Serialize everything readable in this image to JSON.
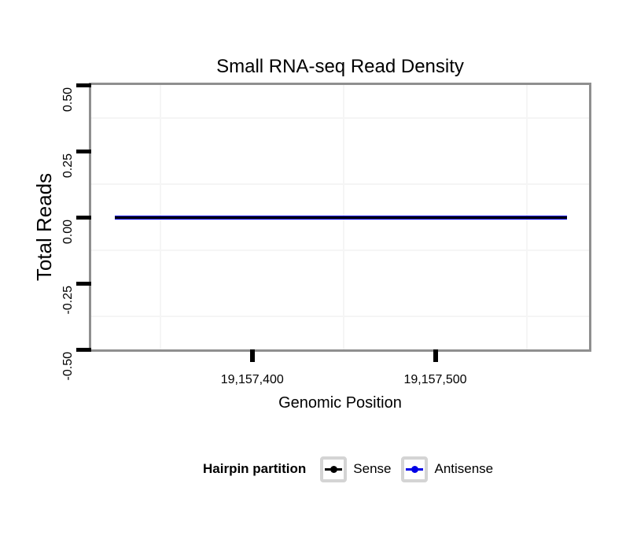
{
  "chart_data": {
    "type": "line",
    "title": "Small RNA-seq Read Density",
    "xlabel": "Genomic Position",
    "ylabel": "Total Reads",
    "xlim": [
      19157312,
      19157584
    ],
    "ylim": [
      -0.5,
      0.5
    ],
    "x_major_ticks": [
      {
        "value": 19157400,
        "label": "19,157,400"
      },
      {
        "value": 19157500,
        "label": "19,157,500"
      }
    ],
    "x_minor_gridlines": [
      19157350,
      19157450,
      19157550
    ],
    "y_major_ticks": [
      {
        "value": 0.5,
        "label": "0.50"
      },
      {
        "value": 0.25,
        "label": "0.25"
      },
      {
        "value": 0.0,
        "label": "0.00"
      },
      {
        "value": -0.25,
        "label": "-0.25"
      },
      {
        "value": -0.5,
        "label": "-0.50"
      }
    ],
    "y_minor_gridlines": [
      0.375,
      0.125,
      -0.125,
      -0.375
    ],
    "grid": "minor-only",
    "series": [
      {
        "name": "Sense",
        "color": "#000000",
        "x": [
          19157325,
          19157572
        ],
        "y": [
          0,
          0
        ]
      },
      {
        "name": "Antisense",
        "color": "#0000e6",
        "x": [
          19157325,
          19157572
        ],
        "y": [
          0,
          0
        ]
      }
    ],
    "legend_position": "bottom"
  },
  "legend": {
    "title": "Hairpin partition",
    "items": [
      {
        "label": "Sense",
        "color": "#000000"
      },
      {
        "label": "Antisense",
        "color": "#0000e6"
      }
    ]
  },
  "colors": {
    "panel_border": "#8f8f8f",
    "minor_grid": "#f5f5f5",
    "axis_tick": "#000000",
    "legend_key_border": "#d4d4d4",
    "text": "#000000"
  }
}
